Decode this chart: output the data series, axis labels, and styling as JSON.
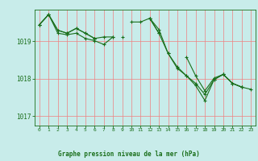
{
  "title": "Graphe pression niveau de la mer (hPa)",
  "bg_color": "#c8ecea",
  "plot_bg_color": "#c8ecea",
  "line_color": "#1a6e1a",
  "grid_color_h": "#f08080",
  "grid_color_v": "#f08080",
  "xlim": [
    -0.5,
    23.5
  ],
  "ylim": [
    1016.75,
    1019.85
  ],
  "yticks": [
    1017,
    1018,
    1019
  ],
  "xticks": [
    0,
    1,
    2,
    3,
    4,
    5,
    6,
    7,
    8,
    9,
    10,
    11,
    12,
    13,
    14,
    15,
    16,
    17,
    18,
    19,
    20,
    21,
    22,
    23
  ],
  "series": [
    [
      1019.45,
      1019.72,
      1019.3,
      1019.22,
      1019.35,
      1019.22,
      1019.08,
      1019.12,
      1019.12,
      null,
      1019.52,
      1019.52,
      1019.62,
      1019.22,
      null,
      null,
      1018.58,
      1018.08,
      1017.68,
      1018.02,
      1018.12,
      1017.88,
      1017.78,
      null
    ],
    [
      1019.45,
      1019.72,
      1019.3,
      1019.22,
      1019.35,
      1019.22,
      1019.08,
      null,
      null,
      1019.12,
      null,
      null,
      1019.62,
      1019.32,
      1018.68,
      1018.32,
      1018.08,
      1017.88,
      1017.58,
      1017.98,
      1018.12,
      1017.88,
      1017.78,
      null
    ],
    [
      1019.45,
      1019.72,
      1019.22,
      1019.18,
      1019.22,
      1019.08,
      1019.02,
      1018.92,
      1019.12,
      null,
      null,
      null,
      1019.62,
      null,
      null,
      null,
      null,
      null,
      null,
      null,
      null,
      null,
      null,
      null
    ],
    [
      null,
      null,
      null,
      null,
      null,
      null,
      1019.08,
      null,
      null,
      null,
      null,
      null,
      1019.62,
      1019.22,
      1018.68,
      1018.28,
      1018.08,
      1017.82,
      1017.42,
      1017.98,
      1018.12,
      1017.88,
      1017.78,
      1017.72
    ]
  ]
}
